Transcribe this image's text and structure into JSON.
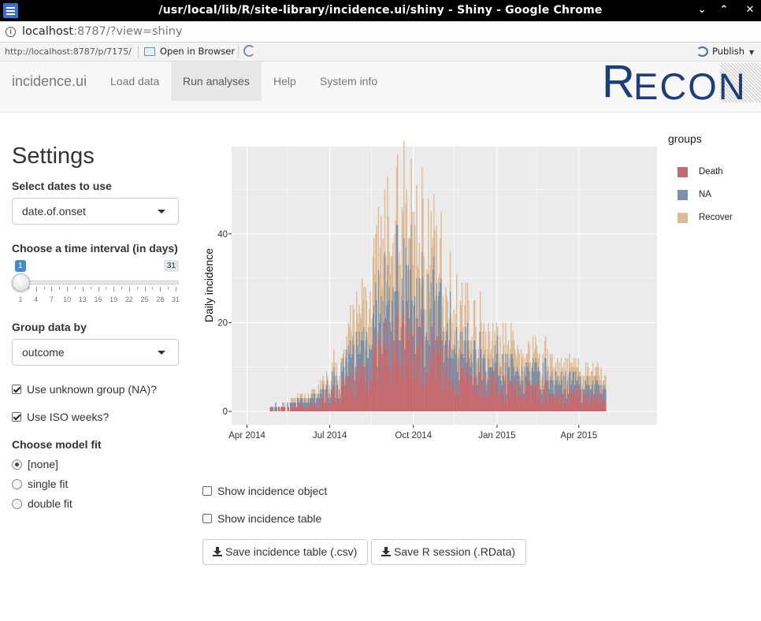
{
  "window": {
    "title": "/usr/local/lib/R/site-library/incidence.ui/shiny - Shiny - Google Chrome",
    "controls": [
      "⌄",
      "⌃",
      "✕"
    ]
  },
  "address": {
    "host": "localhost",
    "rest": ":8787/?view=shiny"
  },
  "viewer": {
    "url": "http://localhost:8787/p/7175/",
    "open_label": "Open in Browser",
    "publish_label": "Publish",
    "caret": "▼"
  },
  "navbar": {
    "brand": "incidence.ui",
    "tabs": [
      {
        "label": "Load data",
        "active": false
      },
      {
        "label": "Run analyses",
        "active": true
      },
      {
        "label": "Help",
        "active": false
      },
      {
        "label": "System info",
        "active": false
      }
    ],
    "logo": {
      "first": "R",
      "rest": "ECON"
    }
  },
  "sidebar": {
    "heading": "Settings",
    "dates_label": "Select dates to use",
    "dates_value": "date.of.onset",
    "interval_label": "Choose a time interval (in days)",
    "interval": {
      "min": 1,
      "max": 31,
      "value": 1,
      "value_label": "1",
      "max_label": "31",
      "tick_labels": [
        "1",
        "4",
        "7",
        "10",
        "13",
        "16",
        "19",
        "22",
        "25",
        "28",
        "31"
      ]
    },
    "group_label": "Group data by",
    "group_value": "outcome",
    "use_na_label": "Use unknown group (NA)?",
    "use_na_checked": true,
    "iso_label": "Use ISO weeks?",
    "iso_checked": true,
    "fit_label": "Choose model fit",
    "fit_options": [
      {
        "label": "[none]",
        "selected": true
      },
      {
        "label": "single fit",
        "selected": false
      },
      {
        "label": "double fit",
        "selected": false
      }
    ]
  },
  "main": {
    "show_object_label": "Show incidence object",
    "show_object_checked": false,
    "show_table_label": "Show incidence table",
    "show_table_checked": false,
    "save_table_label": "Save incidence table (.csv)",
    "save_session_label": "Save R session (.RData)"
  },
  "chart_data": {
    "type": "bar",
    "stacked": true,
    "ylabel": "Daily incidence",
    "xlabel": "",
    "x_ticks": [
      "Apr 2014",
      "Jul 2014",
      "Oct 2014",
      "Jan 2015",
      "Apr 2015"
    ],
    "y_ticks": [
      0,
      20,
      40
    ],
    "ylim": [
      0,
      60
    ],
    "legend_title": "groups",
    "legend_position": "right",
    "grid": true,
    "colors": {
      "Death": "#c46a6e",
      "NA": "#7a8fa8",
      "Recover": "#deb992",
      "panel": "#ebebeb",
      "grid": "#ffffff"
    },
    "series_names": [
      "Death",
      "NA",
      "Recover"
    ],
    "monthly_mean_daily": [
      {
        "month": "2014-04",
        "Death": 0.2,
        "NA": 0.2,
        "Recover": 0.1
      },
      {
        "month": "2014-05",
        "Death": 0.7,
        "NA": 0.6,
        "Recover": 0.4
      },
      {
        "month": "2014-06",
        "Death": 1.8,
        "NA": 1.5,
        "Recover": 1.1
      },
      {
        "month": "2014-07",
        "Death": 4.5,
        "NA": 3.5,
        "Recover": 3.0
      },
      {
        "month": "2014-08",
        "Death": 10.5,
        "NA": 9.0,
        "Recover": 9.5
      },
      {
        "month": "2014-09",
        "Death": 15.5,
        "NA": 12.5,
        "Recover": 14.0
      },
      {
        "month": "2014-10",
        "Death": 14.0,
        "NA": 10.5,
        "Recover": 12.0
      },
      {
        "month": "2014-11",
        "Death": 9.0,
        "NA": 7.0,
        "Recover": 7.5
      },
      {
        "month": "2014-12",
        "Death": 7.0,
        "NA": 5.0,
        "Recover": 5.5
      },
      {
        "month": "2015-01",
        "Death": 5.5,
        "NA": 4.0,
        "Recover": 4.5
      },
      {
        "month": "2015-02",
        "Death": 4.5,
        "NA": 3.5,
        "Recover": 3.5
      },
      {
        "month": "2015-03",
        "Death": 4.0,
        "NA": 3.0,
        "Recover": 3.0
      },
      {
        "month": "2015-04",
        "Death": 3.5,
        "NA": 2.5,
        "Recover": 2.5
      }
    ]
  }
}
